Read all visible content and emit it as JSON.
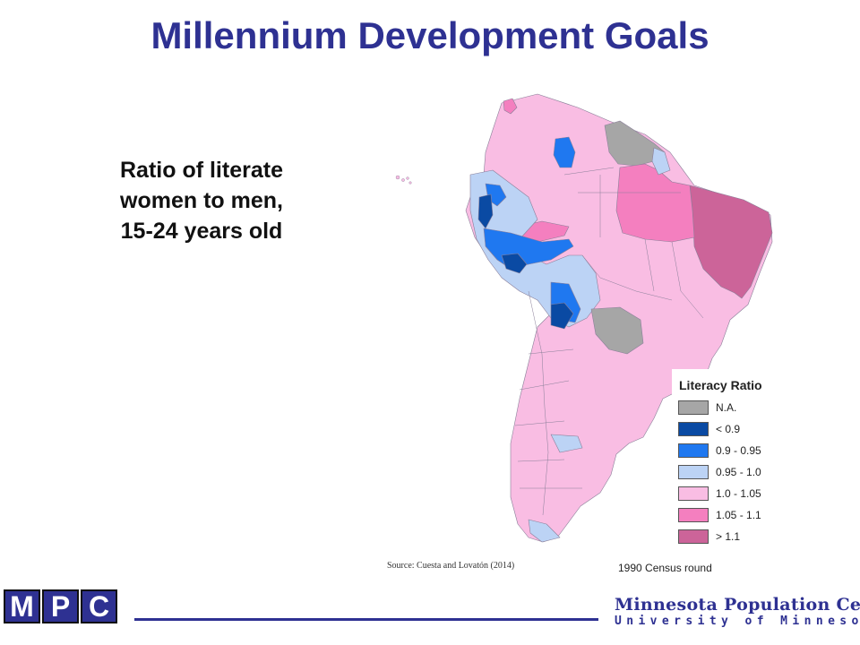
{
  "title": "Millennium Development Goals",
  "subtitle": {
    "line1": "Ratio of literate",
    "line2": "women to men,",
    "line3": "15-24 years old"
  },
  "legend": {
    "title": "Literacy Ratio",
    "items": [
      {
        "label": "N.A.",
        "color": "#a6a6a6"
      },
      {
        "label": "< 0.9",
        "color": "#0a4aa3"
      },
      {
        "label": "0.9 - 0.95",
        "color": "#1f78f0"
      },
      {
        "label": "0.95 - 1.0",
        "color": "#bcd3f5"
      },
      {
        "label": "1.0 - 1.05",
        "color": "#f9bde3"
      },
      {
        "label": "1.05 - 1.1",
        "color": "#f47fbf"
      },
      {
        "label": "> 1.1",
        "color": "#cc6499"
      }
    ]
  },
  "source": "Source: Cuesta and Lovatón (2014)",
  "census_note": "1990 Census round",
  "footer": {
    "logo_text": "MPC",
    "org_name": "Minnesota Population Center",
    "org_sub": "University of Minnesota",
    "brand_color": "#2e3192"
  }
}
